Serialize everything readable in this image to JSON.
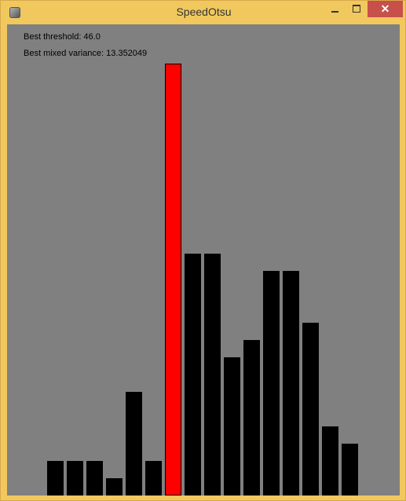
{
  "window": {
    "title": "SpeedOtsu",
    "close_glyph": "✕"
  },
  "info": {
    "best_threshold": "Best threshold: 46.0",
    "best_mixed_variance": "Best mixed variance: 13.352049"
  },
  "colors": {
    "canvas_bg": "#808080",
    "bar": "#000000",
    "highlight_bar": "#ff0000",
    "frame": "#f0c85e"
  },
  "chart_data": {
    "type": "bar",
    "title": "",
    "xlabel": "",
    "ylabel": "",
    "ylim": [
      0,
      100
    ],
    "values": [
      8,
      8,
      8,
      4,
      24,
      8,
      100,
      56,
      56,
      32,
      36,
      52,
      52,
      40,
      16,
      12
    ],
    "highlight_index": 6,
    "grid": false
  }
}
